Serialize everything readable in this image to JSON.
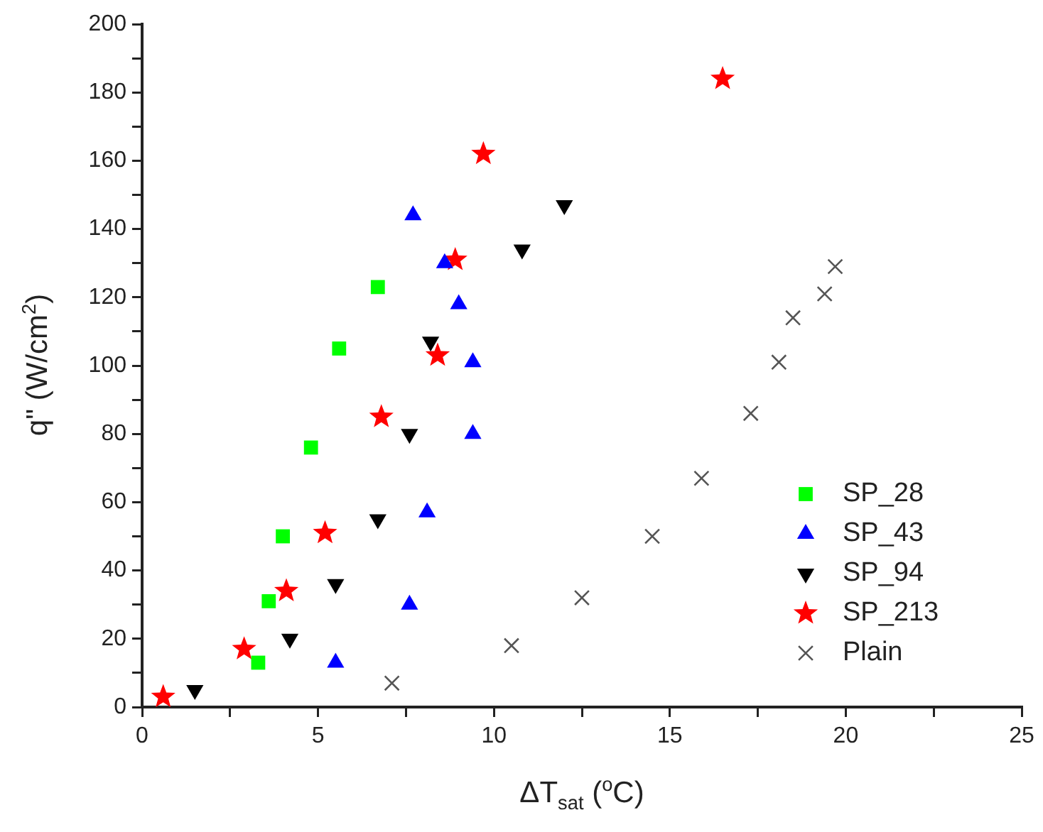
{
  "chart_data": {
    "type": "scatter",
    "xlabel": "ΔT$_{sat}$ ($^{o}$C)",
    "ylabel": "q\" (W/cm$^{2}$)",
    "xlim": [
      0,
      25
    ],
    "xticks": [
      0,
      {
        "value": 2.5,
        "label": null
      },
      5,
      {
        "value": 7.5,
        "label": null
      },
      10,
      {
        "value": 12.5,
        "label": null
      },
      15,
      {
        "value": 17.5,
        "label": null
      },
      20,
      {
        "value": 22.5,
        "label": null
      },
      25
    ],
    "ylim": [
      0,
      200
    ],
    "yticks": [
      0,
      {
        "value": 10,
        "label": null
      },
      20,
      {
        "value": 30,
        "label": null
      },
      40,
      {
        "value": 50,
        "label": null
      },
      60,
      {
        "value": 70,
        "label": null
      },
      80,
      {
        "value": 90,
        "label": null
      },
      100,
      {
        "value": 110,
        "label": null
      },
      120,
      {
        "value": 130,
        "label": null
      },
      140,
      {
        "value": 150,
        "label": null
      },
      160,
      {
        "value": 170,
        "label": null
      },
      180,
      {
        "value": 190,
        "label": null
      },
      200
    ],
    "grid": false,
    "legend": "bottom right",
    "series": [
      {
        "name": "SP_28",
        "color": "#00ff00",
        "marker": "square",
        "x": [
          3.3,
          3.6,
          4.0,
          4.8,
          5.6,
          6.7
        ],
        "values": [
          13,
          31,
          50,
          76,
          105,
          123
        ]
      },
      {
        "name": "SP_43",
        "color": "#0000ff",
        "marker": "triangle",
        "x": [
          5.5,
          7.6,
          8.1,
          9.4,
          9.4,
          9.0,
          8.6,
          7.7
        ],
        "values": [
          13,
          30,
          57,
          80,
          101,
          118,
          130,
          144
        ]
      },
      {
        "name": "SP_94",
        "color": "#000000",
        "marker": "triangle-down",
        "x": [
          1.5,
          4.2,
          5.5,
          6.7,
          7.6,
          8.2,
          10.8,
          12.0
        ],
        "values": [
          5,
          20,
          36,
          55,
          80,
          107,
          134,
          147
        ]
      },
      {
        "name": "SP_213",
        "color": "#ff0000",
        "marker": "star",
        "x": [
          0.6,
          2.9,
          4.1,
          5.2,
          6.8,
          8.4,
          8.9,
          9.7,
          16.5
        ],
        "values": [
          3,
          17,
          34,
          51,
          85,
          103,
          131,
          162,
          184
        ]
      },
      {
        "name": "Plain",
        "color": "#555555",
        "marker": "cross",
        "x": [
          7.1,
          10.5,
          12.5,
          14.5,
          15.9,
          17.3,
          18.1,
          18.5,
          19.4,
          19.7
        ],
        "values": [
          7,
          18,
          32,
          50,
          67,
          86,
          101,
          114,
          121,
          129
        ]
      }
    ]
  }
}
